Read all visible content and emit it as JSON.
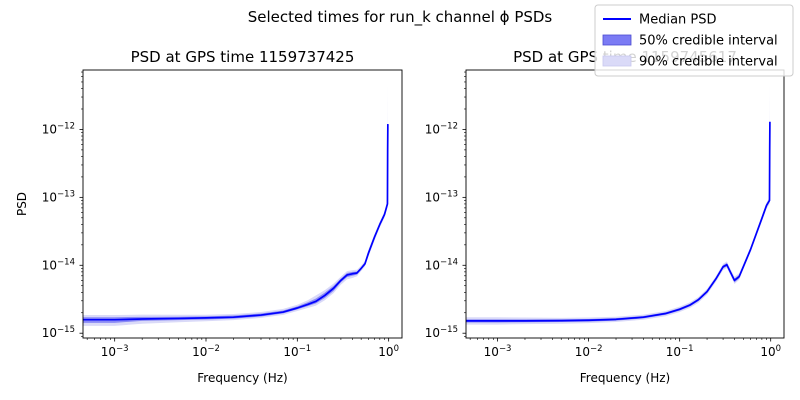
{
  "figure": {
    "suptitle": "Selected times for run_k channel ϕ PSDs"
  },
  "legend": {
    "placement": "top-right",
    "entries": [
      {
        "label": "Median PSD",
        "kind": "line",
        "color": "#0000ff"
      },
      {
        "label": "50% credible interval",
        "kind": "patch",
        "color": "#7b7bf4"
      },
      {
        "label": "90% credible interval",
        "kind": "patch",
        "color": "#dadaf8"
      }
    ]
  },
  "axes_text": {
    "xlabel": "Frequency (Hz)",
    "ylabel": "PSD",
    "x_tick_labels": [
      {
        "base": "10",
        "exp": "−3"
      },
      {
        "base": "10",
        "exp": "−2"
      },
      {
        "base": "10",
        "exp": "−1"
      },
      {
        "base": "10",
        "exp": "0"
      }
    ],
    "y_tick_labels": [
      {
        "base": "10",
        "exp": "−12"
      },
      {
        "base": "10",
        "exp": "−13"
      },
      {
        "base": "10",
        "exp": "−14"
      },
      {
        "base": "10",
        "exp": "−15"
      }
    ]
  },
  "chart_data": [
    {
      "type": "line",
      "title": "PSD at GPS time 1159737425",
      "xlabel": "Frequency (Hz)",
      "ylabel": "PSD",
      "xscale": "log",
      "yscale": "log",
      "xlim": [
        0.00045,
        1.4
      ],
      "ylim": [
        8.5e-16,
        7.5e-12
      ],
      "x_ticks": [
        0.001,
        0.01,
        0.1,
        1
      ],
      "y_ticks": [
        1e-12,
        1e-13,
        1e-14,
        1e-15
      ],
      "colors": {
        "median": "#0000ff",
        "band50": "#7b7bf4",
        "band90": "#dadaf8"
      },
      "series": [
        {
          "name": "Median PSD",
          "x": [
            0.00045,
            0.001,
            0.002,
            0.005,
            0.01,
            0.02,
            0.04,
            0.07,
            0.1,
            0.13,
            0.16,
            0.2,
            0.25,
            0.3,
            0.35,
            0.4,
            0.45,
            0.5,
            0.55,
            0.6,
            0.7,
            0.8,
            0.9,
            0.97,
            0.975,
            0.98
          ],
          "y": [
            1.58e-15,
            1.58e-15,
            1.62e-15,
            1.65e-15,
            1.68e-15,
            1.72e-15,
            1.85e-15,
            2.05e-15,
            2.35e-15,
            2.65e-15,
            2.95e-15,
            3.6e-15,
            4.6e-15,
            6e-15,
            7.2e-15,
            7.5e-15,
            7.7e-15,
            9e-15,
            1.05e-14,
            1.5e-14,
            2.6e-14,
            4e-14,
            5.6e-14,
            8e-14,
            5e-13,
            1.2e-12
          ]
        },
        {
          "name": "50% credible interval",
          "x": [
            0.00045,
            0.001,
            0.002,
            0.005,
            0.01,
            0.02,
            0.04,
            0.07,
            0.1,
            0.13,
            0.16,
            0.2,
            0.25,
            0.3,
            0.35,
            0.4,
            0.45,
            0.5,
            0.55,
            0.6,
            0.7,
            0.8,
            0.9,
            0.97,
            0.98
          ],
          "lower": [
            1.42e-15,
            1.42e-15,
            1.52e-15,
            1.56e-15,
            1.59e-15,
            1.64e-15,
            1.76e-15,
            1.96e-15,
            2.24e-15,
            2.5e-15,
            2.75e-15,
            3.3e-15,
            4.2e-15,
            5.6e-15,
            6.7e-15,
            7e-15,
            7.3e-15,
            8.6e-15,
            1e-14,
            1.4e-14,
            2.45e-14,
            3.8e-14,
            5.3e-14,
            7.5e-14,
            9e-14
          ],
          "upper": [
            1.72e-15,
            1.72e-15,
            1.74e-15,
            1.75e-15,
            1.77e-15,
            1.82e-15,
            1.95e-15,
            2.16e-15,
            2.48e-15,
            2.85e-15,
            3.25e-15,
            3.95e-15,
            5e-15,
            6.4e-15,
            7.7e-15,
            8e-15,
            8.1e-15,
            9.4e-15,
            1.1e-14,
            1.6e-14,
            2.75e-14,
            4.2e-14,
            5.9e-14,
            8.6e-14,
            1.4e-12
          ]
        },
        {
          "name": "90% credible interval",
          "x": [
            0.00045,
            0.001,
            0.002,
            0.005,
            0.01,
            0.02,
            0.04,
            0.07,
            0.1,
            0.13,
            0.16,
            0.2,
            0.25,
            0.3,
            0.35,
            0.4,
            0.45,
            0.5,
            0.55,
            0.6,
            0.7,
            0.8,
            0.9,
            0.97,
            0.98
          ],
          "lower": [
            1.28e-15,
            1.28e-15,
            1.38e-15,
            1.45e-15,
            1.5e-15,
            1.56e-15,
            1.68e-15,
            1.86e-15,
            2.12e-15,
            2.35e-15,
            2.55e-15,
            3.05e-15,
            3.9e-15,
            5.2e-15,
            6.2e-15,
            6.5e-15,
            6.9e-15,
            8.2e-15,
            9.6e-15,
            1.33e-14,
            2.3e-14,
            3.6e-14,
            5e-14,
            7e-14,
            8e-14
          ],
          "upper": [
            1.85e-15,
            1.85e-15,
            1.88e-15,
            1.87e-15,
            1.87e-15,
            1.92e-15,
            2.05e-15,
            2.28e-15,
            2.62e-15,
            3.05e-15,
            3.6e-15,
            4.3e-15,
            5.4e-15,
            6.8e-15,
            8.2e-15,
            8.5e-15,
            8.6e-15,
            9.9e-15,
            1.16e-14,
            1.7e-14,
            2.9e-14,
            4.4e-14,
            6.2e-14,
            9.2e-14,
            4.8e-12
          ]
        }
      ]
    },
    {
      "type": "line",
      "title": "PSD at GPS time 1159745617",
      "xlabel": "Frequency (Hz)",
      "ylabel": "",
      "xscale": "log",
      "yscale": "log",
      "xlim": [
        0.00045,
        1.4
      ],
      "ylim": [
        8.5e-16,
        7.5e-12
      ],
      "x_ticks": [
        0.001,
        0.01,
        0.1,
        1
      ],
      "y_ticks": [
        1e-12,
        1e-13,
        1e-14,
        1e-15
      ],
      "colors": {
        "median": "#0000ff",
        "band50": "#7b7bf4",
        "band90": "#dadaf8"
      },
      "series": [
        {
          "name": "Median PSD",
          "x": [
            0.00045,
            0.001,
            0.002,
            0.005,
            0.01,
            0.02,
            0.04,
            0.07,
            0.1,
            0.13,
            0.16,
            0.2,
            0.25,
            0.3,
            0.33,
            0.36,
            0.4,
            0.45,
            0.5,
            0.6,
            0.7,
            0.8,
            0.9,
            0.97,
            0.975,
            0.98
          ],
          "y": [
            1.52e-15,
            1.52e-15,
            1.52e-15,
            1.53e-15,
            1.55e-15,
            1.6e-15,
            1.72e-15,
            1.95e-15,
            2.25e-15,
            2.6e-15,
            3.1e-15,
            4.1e-15,
            6.3e-15,
            9.5e-15,
            1.02e-14,
            8e-15,
            6e-15,
            6.8e-15,
            9.5e-15,
            1.7e-14,
            3e-14,
            4.9e-14,
            7.6e-14,
            9e-14,
            5e-13,
            1.3e-12
          ]
        },
        {
          "name": "50% credible interval",
          "x": [
            0.00045,
            0.001,
            0.002,
            0.005,
            0.01,
            0.02,
            0.04,
            0.07,
            0.1,
            0.13,
            0.16,
            0.2,
            0.25,
            0.3,
            0.33,
            0.36,
            0.4,
            0.45,
            0.5,
            0.6,
            0.7,
            0.8,
            0.9,
            0.97,
            0.98
          ],
          "lower": [
            1.44e-15,
            1.44e-15,
            1.45e-15,
            1.46e-15,
            1.48e-15,
            1.53e-15,
            1.65e-15,
            1.87e-15,
            2.15e-15,
            2.48e-15,
            2.95e-15,
            3.9e-15,
            6e-15,
            9e-15,
            9.6e-15,
            7.6e-15,
            5.6e-15,
            6.4e-15,
            9e-15,
            1.62e-14,
            2.85e-14,
            4.65e-14,
            7.2e-14,
            8.5e-14,
            9.5e-14
          ],
          "upper": [
            1.6e-15,
            1.6e-15,
            1.6e-15,
            1.6e-15,
            1.62e-15,
            1.67e-15,
            1.79e-15,
            2.03e-15,
            2.35e-15,
            2.72e-15,
            3.25e-15,
            4.3e-15,
            6.6e-15,
            1e-14,
            1.08e-14,
            8.4e-15,
            6.4e-15,
            7.2e-15,
            1e-14,
            1.78e-14,
            3.15e-14,
            5.15e-14,
            8e-14,
            9.5e-14,
            1.5e-12
          ]
        },
        {
          "name": "90% credible interval",
          "x": [
            0.00045,
            0.001,
            0.002,
            0.005,
            0.01,
            0.02,
            0.04,
            0.07,
            0.1,
            0.13,
            0.16,
            0.2,
            0.25,
            0.3,
            0.33,
            0.36,
            0.4,
            0.45,
            0.5,
            0.6,
            0.7,
            0.8,
            0.9,
            0.97,
            0.98
          ],
          "lower": [
            1.34e-15,
            1.34e-15,
            1.36e-15,
            1.38e-15,
            1.41e-15,
            1.46e-15,
            1.58e-15,
            1.78e-15,
            2.05e-15,
            2.36e-15,
            2.8e-15,
            3.7e-15,
            5.7e-15,
            8.5e-15,
            9.1e-15,
            7.2e-15,
            5.3e-15,
            6.1e-15,
            8.6e-15,
            1.55e-14,
            2.7e-14,
            4.4e-14,
            6.8e-14,
            8e-14,
            8.8e-14
          ],
          "upper": [
            1.72e-15,
            1.72e-15,
            1.7e-15,
            1.68e-15,
            1.7e-15,
            1.75e-15,
            1.88e-15,
            2.12e-15,
            2.46e-15,
            2.85e-15,
            3.4e-15,
            4.5e-15,
            6.9e-15,
            1.05e-14,
            1.14e-14,
            8.9e-15,
            6.8e-15,
            7.6e-15,
            1.05e-14,
            1.86e-14,
            3.3e-14,
            5.4e-14,
            8.4e-14,
            1e-13,
            4.8e-12
          ]
        }
      ]
    }
  ]
}
